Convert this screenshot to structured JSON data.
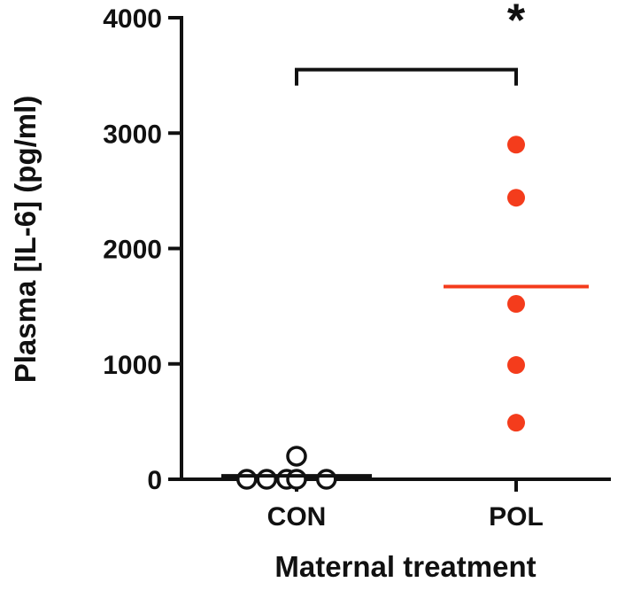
{
  "chart_data": {
    "type": "scatter",
    "title": "",
    "xlabel": "Maternal treatment",
    "ylabel": "Plasma [IL-6] (pg/ml)",
    "ylim": [
      0,
      4000
    ],
    "yticks": [
      0,
      1000,
      2000,
      3000,
      4000
    ],
    "ytick_labels": [
      "0",
      "1000",
      "2000",
      "3000",
      "4000"
    ],
    "categories": [
      "CON",
      "POL"
    ],
    "grid": false,
    "legend": "none",
    "series": [
      {
        "name": "CON",
        "marker": "open-circle",
        "color": "#111111",
        "values": [
          0,
          0,
          0,
          0,
          0,
          200
        ],
        "jitter": [
          -0.75,
          -0.45,
          -0.15,
          0.0,
          0.45,
          0.0
        ],
        "mean": 30
      },
      {
        "name": "POL",
        "marker": "filled-circle",
        "color": "#f43c1c",
        "values": [
          2900,
          2440,
          1520,
          990,
          490
        ],
        "jitter": [
          0,
          0,
          0,
          0,
          0
        ],
        "mean": 1670
      }
    ],
    "annotations": [
      {
        "type": "significance-bracket",
        "from": "CON",
        "to": "POL",
        "y": 3550,
        "label": "*"
      }
    ]
  }
}
